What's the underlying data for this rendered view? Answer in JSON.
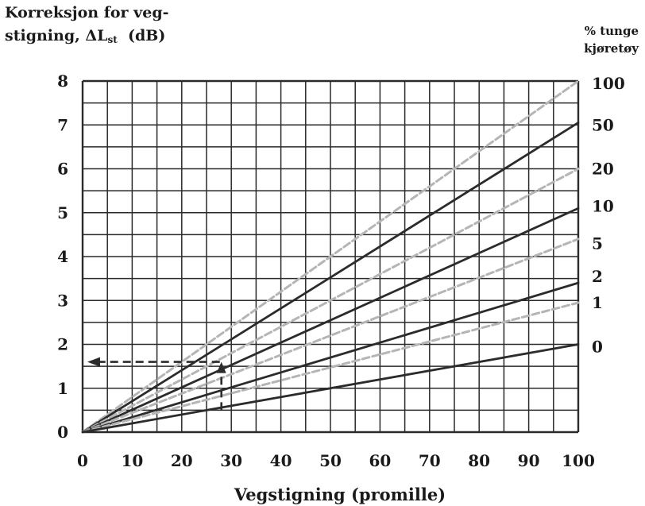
{
  "chart_data": {
    "type": "line",
    "ylabel_line1": "Korreksjon for veg-",
    "ylabel_line2_prefix": "stigning, ",
    "ylabel_symbol": "ΔL",
    "ylabel_subscript": "st",
    "ylabel_unit": "(dB)",
    "right_label_line1": "% tunge",
    "right_label_line2": "kjøretøy",
    "xlabel": "Vegstigning  (promille)",
    "xlim": [
      0,
      100
    ],
    "ylim": [
      0,
      8
    ],
    "x_ticks": [
      "0",
      "10",
      "20",
      "30",
      "40",
      "50",
      "60",
      "70",
      "80",
      "90",
      "100"
    ],
    "y_ticks": [
      "0",
      "1",
      "2",
      "3",
      "4",
      "5",
      "6",
      "7",
      "8"
    ],
    "grid": true,
    "series": [
      {
        "name": "100",
        "x": [
          0,
          100
        ],
        "y": [
          0,
          8.0
        ],
        "style": "dashed"
      },
      {
        "name": "50",
        "x": [
          0,
          100
        ],
        "y": [
          0,
          7.05
        ],
        "style": "solid"
      },
      {
        "name": "20",
        "x": [
          0,
          100
        ],
        "y": [
          0,
          6.0
        ],
        "style": "dashed"
      },
      {
        "name": "10",
        "x": [
          0,
          100
        ],
        "y": [
          0,
          5.1
        ],
        "style": "solid"
      },
      {
        "name": "5",
        "x": [
          0,
          100
        ],
        "y": [
          0,
          4.4
        ],
        "style": "dashed"
      },
      {
        "name": "2",
        "x": [
          0,
          100
        ],
        "y": [
          0,
          3.4
        ],
        "style": "solid"
      },
      {
        "name": "1",
        "x": [
          0,
          100
        ],
        "y": [
          0,
          2.95
        ],
        "style": "dashed"
      },
      {
        "name": "0",
        "x": [
          0,
          100
        ],
        "y": [
          0,
          2.0
        ],
        "style": "solid"
      }
    ],
    "series_label_y": [
      7.95,
      7.0,
      6.0,
      5.15,
      4.3,
      3.55,
      2.95,
      1.95
    ],
    "annotation": {
      "type": "arrow-path",
      "x_start": 28,
      "y_start": 0.5,
      "y_level": 1.6,
      "x_end": 0
    },
    "colors": {
      "solid": "#2b2b2b",
      "dashed": "#b5b5b5",
      "grid": "#2a2a2a",
      "text": "#1a1a1a"
    }
  }
}
